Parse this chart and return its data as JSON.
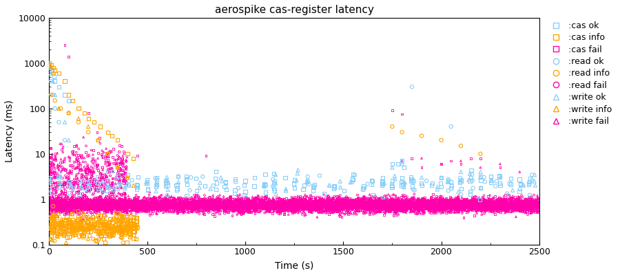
{
  "title": "aerospike cas-register latency",
  "xlabel": "Time (s)",
  "ylabel": "Latency (ms)",
  "xlim": [
    0,
    2500
  ],
  "ylim_log": [
    0.1,
    10000
  ],
  "series": [
    {
      "label": ":cas ok",
      "color": "#87cefa",
      "marker": "s",
      "ms": 5
    },
    {
      "label": ":cas info",
      "color": "#ffa500",
      "marker": "s",
      "ms": 5
    },
    {
      "label": ":cas fail",
      "color": "#ff00aa",
      "marker": "s",
      "ms": 4
    },
    {
      "label": ":read ok",
      "color": "#87cefa",
      "marker": "o",
      "ms": 4
    },
    {
      "label": ":read info",
      "color": "#ffa500",
      "marker": "o",
      "ms": 4
    },
    {
      "label": ":read fail",
      "color": "#ff00aa",
      "marker": "o",
      "ms": 4
    },
    {
      "label": ":write ok",
      "color": "#87cefa",
      "marker": "^",
      "ms": 5
    },
    {
      "label": ":write info",
      "color": "#ffa500",
      "marker": "^",
      "ms": 5
    },
    {
      "label": ":write fail",
      "color": "#ff00aa",
      "marker": "^",
      "ms": 4
    }
  ],
  "background_color": "#ffffff"
}
